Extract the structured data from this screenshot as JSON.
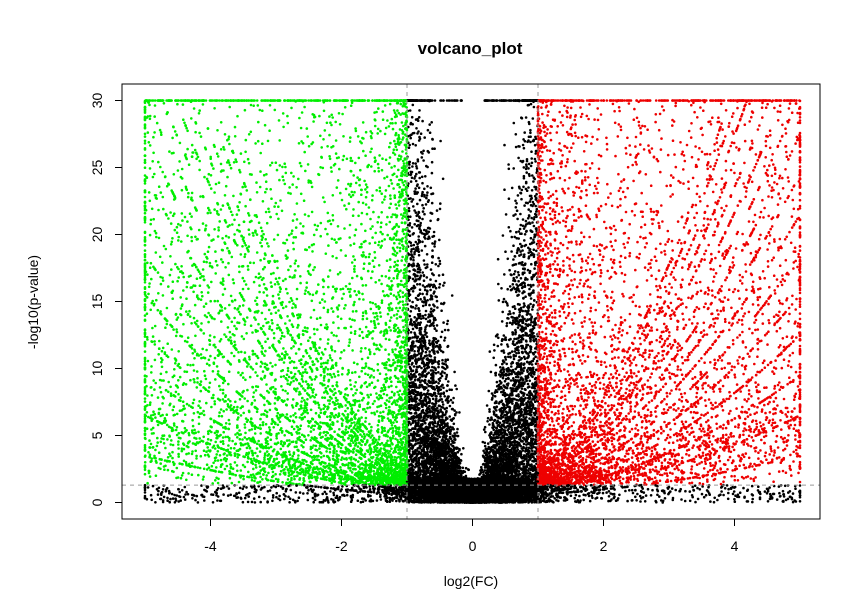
{
  "chart_data": {
    "type": "scatter",
    "title": "volcano_plot",
    "xlabel": "log2(FC)",
    "ylabel": "-log10(p-value)",
    "xlim": [
      -5.2,
      5.2
    ],
    "ylim": [
      -1,
      31
    ],
    "x_ticks": [
      -4,
      -2,
      0,
      2,
      4
    ],
    "y_ticks": [
      0,
      5,
      10,
      15,
      20,
      25,
      30
    ],
    "x_tick_labels": [
      "-4",
      "-2",
      "0",
      "2",
      "4"
    ],
    "y_tick_labels": [
      "0",
      "5",
      "10",
      "15",
      "20",
      "25",
      "30"
    ],
    "thresholds": {
      "log2fc": [
        -1,
        1
      ],
      "neg_log10_p": 1.3
    },
    "caps": {
      "log2fc_min": -5,
      "log2fc_max": 5,
      "neg_log10_p_max": 30
    },
    "grid": false,
    "legend": "none",
    "series": [
      {
        "color": "#00ee00",
        "rule": "log2FC < -1 and -log10(p) > 1.3"
      },
      {
        "color": "#ee0000",
        "rule": "log2FC > 1 and -log10(p) > 1.3"
      },
      {
        "color": "#000000",
        "rule": "not significant"
      }
    ],
    "colors": {
      "down": "#00ee00",
      "up": "#ee0000",
      "ns": "#000000",
      "threshold_line": "#999999"
    }
  }
}
